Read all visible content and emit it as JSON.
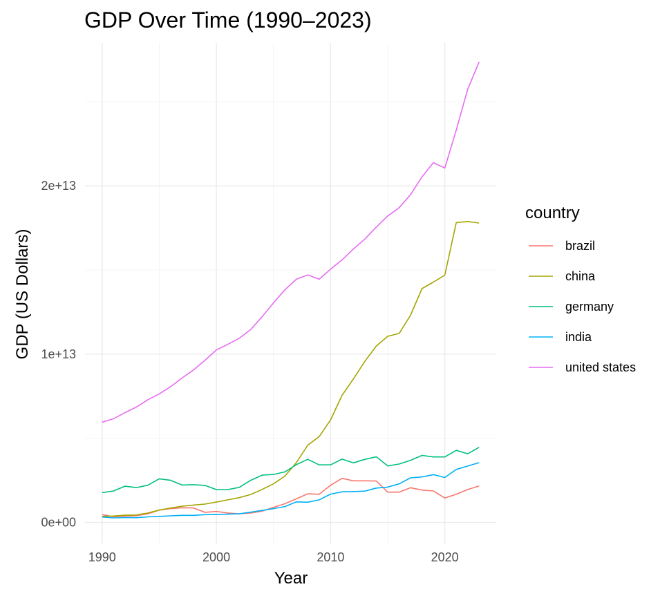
{
  "chart_data": {
    "type": "line",
    "title": "GDP Over Time (1990–2023)",
    "xlabel": "Year",
    "ylabel": "GDP (US Dollars)",
    "xlim": [
      1988.5,
      2024.5
    ],
    "ylim": [
      -1250000000000.0,
      28500000000000.0
    ],
    "x_ticks": [
      1990,
      2000,
      2010,
      2020
    ],
    "x_tick_labels": [
      "1990",
      "2000",
      "2010",
      "2020"
    ],
    "y_ticks": [
      0,
      10000000000000.0,
      20000000000000.0
    ],
    "y_tick_labels": [
      "0e+00",
      "1e+13",
      "2e+13"
    ],
    "grid": true,
    "legend": {
      "title": "country",
      "position": "right"
    },
    "x": [
      1990,
      1991,
      1992,
      1993,
      1994,
      1995,
      1996,
      1997,
      1998,
      1999,
      2000,
      2001,
      2002,
      2003,
      2004,
      2005,
      2006,
      2007,
      2008,
      2009,
      2010,
      2011,
      2012,
      2013,
      2014,
      2015,
      2016,
      2017,
      2018,
      2019,
      2020,
      2021,
      2022,
      2023
    ],
    "series": [
      {
        "name": "brazil",
        "color": "#F8766D",
        "values": [
          460000000000.0,
          340000000000.0,
          370000000000.0,
          400000000000.0,
          510000000000.0,
          730000000000.0,
          820000000000.0,
          870000000000.0,
          860000000000.0,
          600000000000.0,
          650000000000.0,
          560000000000.0,
          510000000000.0,
          560000000000.0,
          670000000000.0,
          890000000000.0,
          1110000000000.0,
          1400000000000.0,
          1700000000000.0,
          1670000000000.0,
          2210000000000.0,
          2620000000000.0,
          2470000000000.0,
          2470000000000.0,
          2460000000000.0,
          1800000000000.0,
          1800000000000.0,
          2060000000000.0,
          1920000000000.0,
          1870000000000.0,
          1450000000000.0,
          1670000000000.0,
          1950000000000.0,
          2170000000000.0
        ]
      },
      {
        "name": "china",
        "color": "#A3A500",
        "values": [
          360000000000.0,
          380000000000.0,
          430000000000.0,
          440000000000.0,
          560000000000.0,
          730000000000.0,
          860000000000.0,
          960000000000.0,
          1030000000000.0,
          1090000000000.0,
          1210000000000.0,
          1340000000000.0,
          1470000000000.0,
          1660000000000.0,
          1960000000000.0,
          2290000000000.0,
          2750000000000.0,
          3550000000000.0,
          4590000000000.0,
          5100000000000.0,
          6090000000000.0,
          7550000000000.0,
          8530000000000.0,
          9570000000000.0,
          10480000000000.0,
          11060000000000.0,
          11230000000000.0,
          12310000000000.0,
          13890000000000.0,
          14280000000000.0,
          14690000000000.0,
          17820000000000.0,
          17880000000000.0,
          17790000000000.0
        ]
      },
      {
        "name": "germany",
        "color": "#00BF7D",
        "values": [
          1770000000000.0,
          1870000000000.0,
          2150000000000.0,
          2070000000000.0,
          2210000000000.0,
          2590000000000.0,
          2500000000000.0,
          2220000000000.0,
          2240000000000.0,
          2200000000000.0,
          1950000000000.0,
          1950000000000.0,
          2080000000000.0,
          2500000000000.0,
          2810000000000.0,
          2850000000000.0,
          3000000000000.0,
          3430000000000.0,
          3750000000000.0,
          3420000000000.0,
          3420000000000.0,
          3760000000000.0,
          3540000000000.0,
          3750000000000.0,
          3900000000000.0,
          3360000000000.0,
          3470000000000.0,
          3690000000000.0,
          3980000000000.0,
          3890000000000.0,
          3890000000000.0,
          4280000000000.0,
          4080000000000.0,
          4460000000000.0
        ]
      },
      {
        "name": "india",
        "color": "#00B0F6",
        "values": [
          320000000000.0,
          270000000000.0,
          290000000000.0,
          280000000000.0,
          330000000000.0,
          360000000000.0,
          390000000000.0,
          420000000000.0,
          420000000000.0,
          460000000000.0,
          470000000000.0,
          490000000000.0,
          510000000000.0,
          610000000000.0,
          710000000000.0,
          820000000000.0,
          940000000000.0,
          1220000000000.0,
          1200000000000.0,
          1340000000000.0,
          1680000000000.0,
          1820000000000.0,
          1830000000000.0,
          1860000000000.0,
          2040000000000.0,
          2100000000000.0,
          2290000000000.0,
          2650000000000.0,
          2700000000000.0,
          2840000000000.0,
          2670000000000.0,
          3150000000000.0,
          3350000000000.0,
          3550000000000.0
        ]
      },
      {
        "name": "united states",
        "color": "#E76BF3",
        "values": [
          5960000000000.0,
          6160000000000.0,
          6520000000000.0,
          6860000000000.0,
          7290000000000.0,
          7640000000000.0,
          8070000000000.0,
          8580000000000.0,
          9060000000000.0,
          9630000000000.0,
          10250000000000.0,
          10580000000000.0,
          10940000000000.0,
          11460000000000.0,
          12220000000000.0,
          13040000000000.0,
          13820000000000.0,
          14450000000000.0,
          14710000000000.0,
          14450000000000.0,
          15050000000000.0,
          15600000000000.0,
          16250000000000.0,
          16840000000000.0,
          17550000000000.0,
          18210000000000.0,
          18700000000000.0,
          19480000000000.0,
          20530000000000.0,
          21380000000000.0,
          21060000000000.0,
          23320000000000.0,
          25740000000000.0,
          27360000000000.0
        ]
      }
    ]
  }
}
